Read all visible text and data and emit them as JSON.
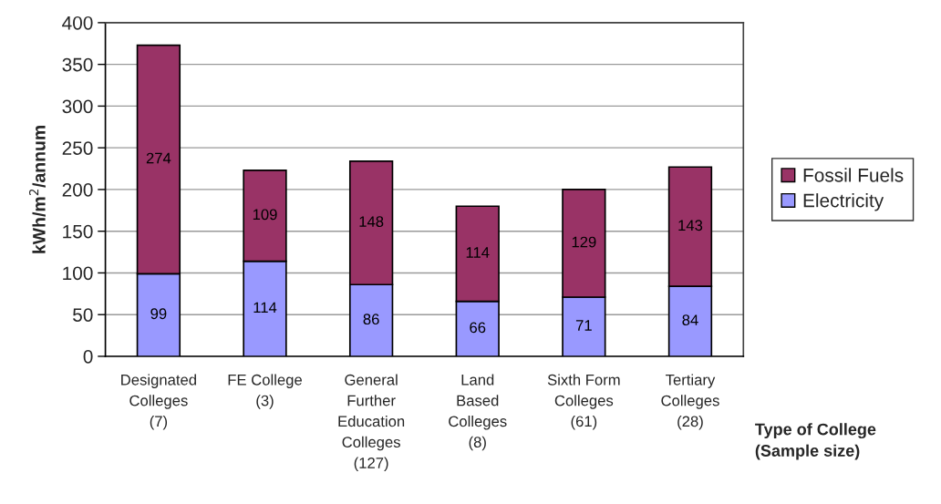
{
  "chart_data": {
    "type": "bar",
    "stacked": true,
    "categories": [
      "Designated\nColleges\n(7)",
      "FE College\n(3)",
      "General\nFurther\nEducation\nColleges\n(127)",
      "Land\nBased\nColleges\n(8)",
      "Sixth Form\nColleges\n(61)",
      "Tertiary\nColleges\n(28)"
    ],
    "series": [
      {
        "name": "Electricity",
        "color": "#9999ff",
        "values": [
          99,
          114,
          86,
          66,
          71,
          84
        ]
      },
      {
        "name": "Fossil Fuels",
        "color": "#993366",
        "values": [
          274,
          109,
          148,
          114,
          129,
          143
        ]
      }
    ],
    "ylabel": "kWh/m$^{2}$/annum",
    "xlabel": "Type of College\n(Sample size)",
    "ylim": [
      0,
      400
    ],
    "yticks": [
      0,
      50,
      100,
      150,
      200,
      250,
      300,
      350,
      400
    ],
    "grid": "y",
    "legend": "right",
    "data_labels": true
  }
}
